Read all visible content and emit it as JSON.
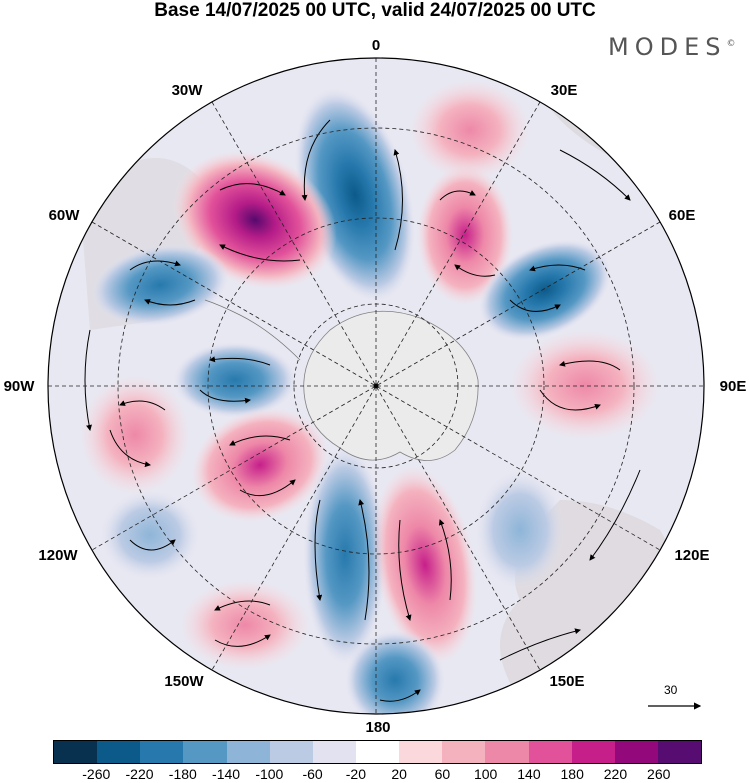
{
  "title": "Base 14/07/2025 00 UTC, valid 24/07/2025 00 UTC",
  "logo": {
    "text": "MODES",
    "mark": "©"
  },
  "longitude_labels": {
    "n0": "0",
    "n30e": "30E",
    "n60e": "60E",
    "n90e": "90E",
    "n120e": "120E",
    "n150e": "150E",
    "n180": "180",
    "n150w": "150W",
    "n120w": "120W",
    "n90w": "90W",
    "n60w": "60W",
    "n30w": "30W"
  },
  "reference_vector": {
    "label": "30"
  },
  "colorbar": {
    "colors": [
      "#08304f",
      "#0b5a8a",
      "#2779ad",
      "#5598c4",
      "#8eb5d8",
      "#bccbe4",
      "#e2e2f0",
      "#ffffff",
      "#fad8dc",
      "#f4b2bf",
      "#ee88a8",
      "#e2529a",
      "#c61f8a",
      "#93087a",
      "#560c70"
    ],
    "ticks": [
      "-260",
      "-220",
      "-180",
      "-140",
      "-100",
      "-60",
      "-20",
      "20",
      "60",
      "100",
      "140",
      "180",
      "220",
      "260"
    ]
  },
  "map": {
    "projection": "south-polar-stereographic",
    "field": "geopotential height anomaly",
    "vectors": "wind anomaly"
  }
}
